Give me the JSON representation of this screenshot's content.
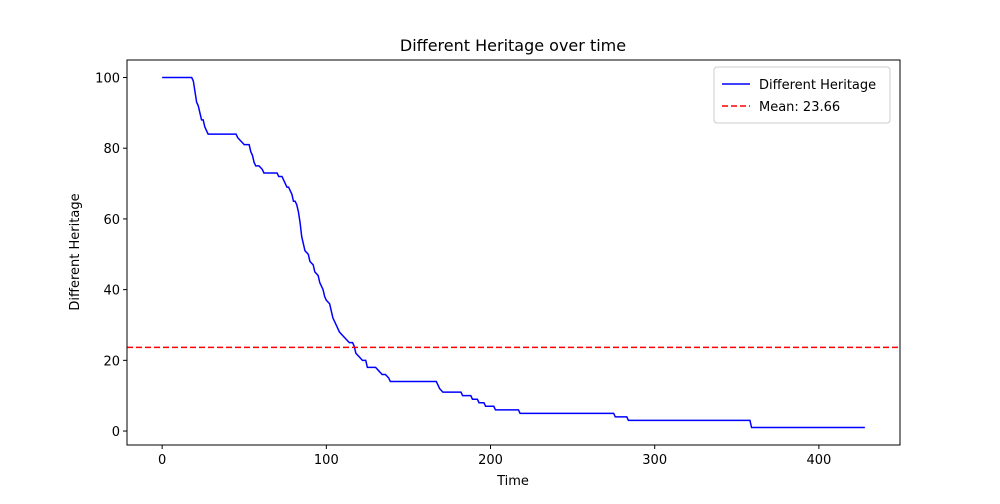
{
  "chart_data": {
    "type": "line",
    "title": "Different Heritage over time",
    "xlabel": "Time",
    "ylabel": "Different Heritage",
    "x": [
      0,
      18,
      19,
      20,
      21,
      22,
      23,
      24,
      25,
      26,
      27,
      28,
      45,
      46,
      48,
      50,
      53,
      54,
      55,
      56,
      57,
      59,
      61,
      62,
      70,
      71,
      73,
      74,
      76,
      77,
      78,
      79,
      80,
      81,
      82,
      83,
      84,
      85,
      86,
      87,
      89,
      90,
      92,
      93,
      95,
      96,
      97,
      98,
      99,
      100,
      102,
      103,
      104,
      106,
      108,
      110,
      112,
      114,
      116,
      117,
      118,
      120,
      122,
      124,
      125,
      130,
      132,
      134,
      136,
      138,
      139,
      167,
      169,
      171,
      182,
      183,
      188,
      189,
      192,
      193,
      196,
      197,
      202,
      203,
      217,
      218,
      275,
      276,
      283,
      284,
      358,
      359,
      428
    ],
    "series": [
      {
        "name": "Different Heritage",
        "color": "#0000ff",
        "values": [
          100,
          100,
          99,
          96,
          93,
          92,
          90,
          88,
          88,
          86,
          85,
          84,
          84,
          83,
          82,
          81,
          81,
          79,
          78,
          76,
          75,
          75,
          74,
          73,
          73,
          72,
          72,
          71,
          69,
          69,
          68,
          67,
          65,
          65,
          64,
          62,
          59,
          55,
          53,
          51,
          50,
          48,
          47,
          45,
          44,
          42,
          41,
          40,
          38,
          37,
          36,
          34,
          32,
          30,
          28,
          27,
          26,
          25,
          25,
          24,
          22,
          21,
          20,
          20,
          18,
          18,
          17,
          16,
          16,
          15,
          14,
          14,
          12,
          11,
          11,
          10,
          10,
          9,
          9,
          8,
          8,
          7,
          7,
          6,
          6,
          5,
          5,
          4,
          4,
          3,
          3,
          1,
          1
        ]
      }
    ],
    "hlines": [
      {
        "name": "Mean: 23.66",
        "value": 23.66,
        "color": "#ff0000",
        "dashed": true
      }
    ],
    "xlim": [
      -21.4,
      449.4
    ],
    "ylim": [
      -3.95,
      104.95
    ],
    "xticks": [
      0,
      100,
      200,
      300,
      400
    ],
    "yticks": [
      0,
      20,
      40,
      60,
      80,
      100
    ],
    "legend": "upper right"
  }
}
